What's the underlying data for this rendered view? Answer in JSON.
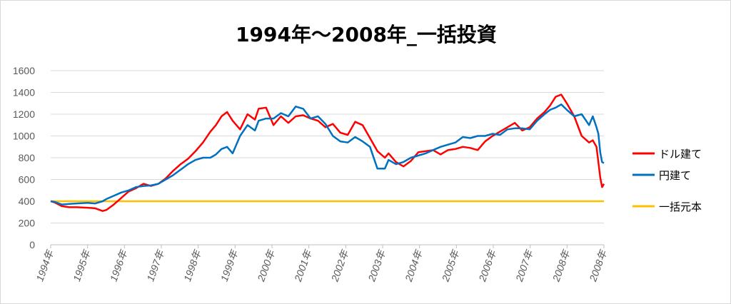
{
  "chart_data": {
    "type": "line",
    "title": "1994年～2008年_一括投資",
    "xlabel": "",
    "ylabel": "",
    "ylim": [
      0,
      1600
    ],
    "yticks": [
      0,
      200,
      400,
      600,
      800,
      1000,
      1200,
      1400,
      1600
    ],
    "xlim": [
      1994.0,
      2008.9
    ],
    "x_tick_labels": [
      "1994年",
      "1995年",
      "1996年",
      "1997年",
      "1998年",
      "1999年",
      "2000年",
      "2001年",
      "2002年",
      "2003年",
      "2004年",
      "2005年",
      "2006年",
      "2007年",
      "2008年",
      "2008年"
    ],
    "grid": true,
    "legend_position": "right",
    "series": [
      {
        "name": "ドル建て",
        "color": "#ff0000",
        "x": [
          1994.0,
          1994.1,
          1994.3,
          1994.5,
          1994.7,
          1995.0,
          1995.2,
          1995.4,
          1995.5,
          1995.7,
          1995.9,
          1996.1,
          1996.3,
          1996.5,
          1996.7,
          1996.9,
          1997.1,
          1997.3,
          1997.5,
          1997.7,
          1997.9,
          1998.1,
          1998.3,
          1998.45,
          1998.6,
          1998.75,
          1998.9,
          1999.1,
          1999.3,
          1999.5,
          1999.6,
          1999.8,
          2000.0,
          2000.2,
          2000.4,
          2000.6,
          2000.8,
          2001.0,
          2001.2,
          2001.4,
          2001.6,
          2001.8,
          2002.0,
          2002.2,
          2002.4,
          2002.6,
          2002.8,
          2003.0,
          2003.1,
          2003.3,
          2003.5,
          2003.7,
          2003.9,
          2004.1,
          2004.3,
          2004.5,
          2004.7,
          2004.9,
          2005.1,
          2005.3,
          2005.5,
          2005.7,
          2005.9,
          2006.1,
          2006.3,
          2006.5,
          2006.7,
          2006.9,
          2007.1,
          2007.3,
          2007.45,
          2007.6,
          2007.75,
          2007.9,
          2008.1,
          2008.3,
          2008.5,
          2008.6,
          2008.7,
          2008.75,
          2008.8,
          2008.85,
          2008.9
        ],
        "values": [
          400,
          390,
          355,
          345,
          345,
          340,
          335,
          310,
          320,
          370,
          430,
          490,
          520,
          560,
          540,
          560,
          610,
          680,
          740,
          790,
          860,
          940,
          1040,
          1100,
          1180,
          1220,
          1140,
          1060,
          1200,
          1150,
          1250,
          1260,
          1100,
          1180,
          1120,
          1180,
          1190,
          1160,
          1140,
          1080,
          1110,
          1030,
          1010,
          1130,
          1100,
          980,
          860,
          800,
          840,
          760,
          720,
          770,
          850,
          860,
          870,
          830,
          870,
          880,
          900,
          890,
          870,
          950,
          1000,
          1040,
          1080,
          1120,
          1050,
          1080,
          1160,
          1220,
          1280,
          1360,
          1380,
          1300,
          1180,
          1000,
          940,
          960,
          900,
          760,
          620,
          530,
          560
        ]
      },
      {
        "name": "円建て",
        "color": "#0070c0",
        "x": [
          1994.0,
          1994.1,
          1994.3,
          1994.5,
          1994.7,
          1995.0,
          1995.2,
          1995.4,
          1995.5,
          1995.7,
          1995.9,
          1996.1,
          1996.3,
          1996.5,
          1996.7,
          1996.9,
          1997.1,
          1997.3,
          1997.5,
          1997.7,
          1997.9,
          1998.1,
          1998.3,
          1998.45,
          1998.6,
          1998.75,
          1998.9,
          1999.1,
          1999.3,
          1999.5,
          1999.6,
          1999.8,
          2000.0,
          2000.2,
          2000.4,
          2000.6,
          2000.8,
          2001.0,
          2001.2,
          2001.4,
          2001.6,
          2001.8,
          2002.0,
          2002.2,
          2002.4,
          2002.6,
          2002.8,
          2003.0,
          2003.1,
          2003.3,
          2003.5,
          2003.7,
          2003.9,
          2004.1,
          2004.3,
          2004.5,
          2004.7,
          2004.9,
          2005.1,
          2005.3,
          2005.5,
          2005.7,
          2005.9,
          2006.1,
          2006.3,
          2006.5,
          2006.7,
          2006.9,
          2007.1,
          2007.3,
          2007.45,
          2007.6,
          2007.75,
          2007.9,
          2008.1,
          2008.3,
          2008.5,
          2008.6,
          2008.7,
          2008.75,
          2008.8,
          2008.85,
          2008.9
        ],
        "values": [
          400,
          395,
          370,
          375,
          380,
          385,
          380,
          400,
          420,
          450,
          480,
          500,
          530,
          540,
          545,
          560,
          600,
          640,
          690,
          740,
          780,
          800,
          800,
          830,
          880,
          900,
          840,
          1000,
          1100,
          1050,
          1140,
          1160,
          1160,
          1210,
          1180,
          1270,
          1250,
          1160,
          1180,
          1110,
          1000,
          950,
          940,
          990,
          950,
          900,
          700,
          700,
          780,
          740,
          760,
          800,
          820,
          840,
          870,
          900,
          920,
          940,
          990,
          980,
          1000,
          1000,
          1020,
          1010,
          1060,
          1070,
          1070,
          1060,
          1140,
          1200,
          1240,
          1260,
          1290,
          1240,
          1180,
          1200,
          1100,
          1180,
          1080,
          1020,
          850,
          760,
          750
        ]
      },
      {
        "name": "一括元本",
        "color": "#ffc000",
        "x": [
          1994.0,
          2008.9
        ],
        "values": [
          400,
          400
        ]
      }
    ]
  }
}
